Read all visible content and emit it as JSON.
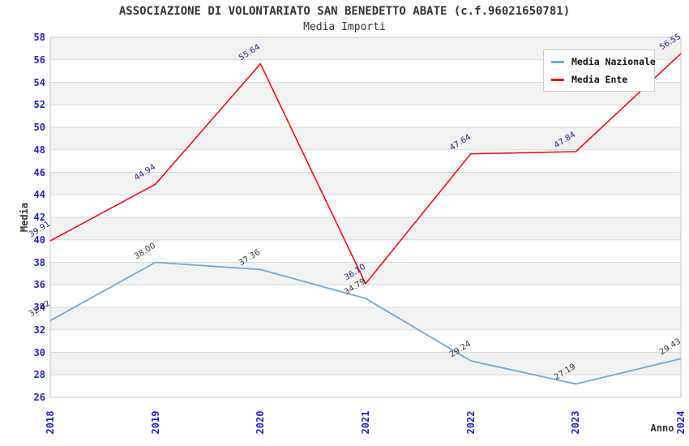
{
  "title": "ASSOCIAZIONE DI VOLONTARIATO SAN BENEDETTO ABATE (c.f.96021650781)",
  "subtitle": "Media Importi",
  "axes": {
    "ylabel": "Media",
    "xlabel": "Anno",
    "yticks": [
      26,
      28,
      30,
      32,
      34,
      36,
      38,
      40,
      42,
      44,
      46,
      48,
      50,
      52,
      54,
      56,
      58
    ],
    "xticks": [
      "2018",
      "2019",
      "2020",
      "2021",
      "2022",
      "2023",
      "2024"
    ],
    "tick_color": "#2222cc"
  },
  "legend": {
    "items": [
      {
        "label": "Media Nazionale",
        "color": "#6fa8dc"
      },
      {
        "label": "Media Ente",
        "color": "#ee1111"
      }
    ]
  },
  "chart_data": {
    "type": "line",
    "title": "ASSOCIAZIONE DI VOLONTARIATO SAN BENEDETTO ABATE (c.f.96021650781)",
    "subtitle": "Media Importi",
    "x": [
      "2018",
      "2019",
      "2020",
      "2021",
      "2022",
      "2023",
      "2024"
    ],
    "series": [
      {
        "name": "Media Nazionale",
        "color": "#6fa8dc",
        "label_color": "#333333",
        "values": [
          32.82,
          38.0,
          37.36,
          34.79,
          29.24,
          27.19,
          29.43
        ]
      },
      {
        "name": "Media Ente",
        "color": "#ee1111",
        "label_color": "#22228e",
        "values": [
          39.91,
          44.94,
          55.64,
          36.1,
          47.64,
          47.84,
          56.55
        ]
      }
    ],
    "xlabel": "Anno",
    "ylabel": "Media",
    "ylim": [
      26,
      58
    ],
    "ytick_step": 2,
    "grid": true,
    "legend_position": "top-right",
    "band_colors": [
      "#f2f2f2",
      "#ffffff"
    ],
    "gridline_color": "#d9d9d9",
    "plot_border_color": "#c5c5c5",
    "value_labels_decimals": 2
  }
}
